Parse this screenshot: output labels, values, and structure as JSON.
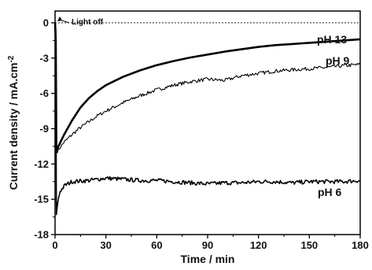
{
  "chart_data": {
    "type": "line",
    "title": "",
    "xlabel": "Time / min",
    "ylabel": "Current density / mA.cm",
    "ylabel_superscript": "-2",
    "xlim": [
      0,
      180
    ],
    "ylim": [
      -18,
      1
    ],
    "xticks": [
      0,
      30,
      60,
      90,
      120,
      150,
      180
    ],
    "yticks": [
      0,
      -3,
      -6,
      -9,
      -12,
      -15,
      -18
    ],
    "grid": false,
    "legend": "none",
    "baseline": {
      "y": 0,
      "style": "dashed"
    },
    "annotation": {
      "text": "Light off",
      "x": 0,
      "y": 0
    },
    "series": [
      {
        "name": "pH 13",
        "stroke": "#000000",
        "width": "thick",
        "points": [
          [
            0.4,
            -1.5
          ],
          [
            0.8,
            -10.9
          ],
          [
            2,
            -10.5
          ],
          [
            5,
            -9.6
          ],
          [
            10,
            -8.3
          ],
          [
            15,
            -7.2
          ],
          [
            20,
            -6.4
          ],
          [
            25,
            -5.8
          ],
          [
            30,
            -5.3
          ],
          [
            40,
            -4.6
          ],
          [
            50,
            -4.05
          ],
          [
            60,
            -3.6
          ],
          [
            70,
            -3.25
          ],
          [
            80,
            -2.95
          ],
          [
            90,
            -2.7
          ],
          [
            100,
            -2.45
          ],
          [
            110,
            -2.25
          ],
          [
            120,
            -2.05
          ],
          [
            130,
            -1.9
          ],
          [
            140,
            -1.8
          ],
          [
            150,
            -1.7
          ],
          [
            160,
            -1.6
          ],
          [
            170,
            -1.5
          ],
          [
            180,
            -1.4
          ]
        ]
      },
      {
        "name": "pH 9",
        "stroke": "#000000",
        "width": "thin",
        "noisy": true,
        "points": [
          [
            0.4,
            -1.0
          ],
          [
            0.8,
            -11.0
          ],
          [
            2,
            -10.8
          ],
          [
            5,
            -10.2
          ],
          [
            10,
            -9.5
          ],
          [
            15,
            -8.9
          ],
          [
            20,
            -8.4
          ],
          [
            25,
            -7.9
          ],
          [
            30,
            -7.5
          ],
          [
            40,
            -6.8
          ],
          [
            50,
            -6.2
          ],
          [
            60,
            -5.7
          ],
          [
            70,
            -5.3
          ],
          [
            80,
            -5.0
          ],
          [
            90,
            -4.8
          ],
          [
            100,
            -4.9
          ],
          [
            110,
            -4.5
          ],
          [
            120,
            -4.3
          ],
          [
            130,
            -4.1
          ],
          [
            140,
            -4.0
          ],
          [
            150,
            -3.9
          ],
          [
            160,
            -3.8
          ],
          [
            170,
            -3.65
          ],
          [
            180,
            -3.55
          ]
        ]
      },
      {
        "name": "pH 6",
        "stroke": "#000000",
        "width": "medium",
        "noisy": true,
        "points": [
          [
            0.4,
            -0.5
          ],
          [
            0.8,
            -16.3
          ],
          [
            1.5,
            -15.3
          ],
          [
            3,
            -14.3
          ],
          [
            6,
            -13.8
          ],
          [
            10,
            -13.5
          ],
          [
            20,
            -13.4
          ],
          [
            30,
            -13.2
          ],
          [
            40,
            -13.3
          ],
          [
            50,
            -13.4
          ],
          [
            60,
            -13.4
          ],
          [
            70,
            -13.5
          ],
          [
            80,
            -13.6
          ],
          [
            90,
            -13.7
          ],
          [
            100,
            -13.6
          ],
          [
            110,
            -13.6
          ],
          [
            120,
            -13.5
          ],
          [
            130,
            -13.5
          ],
          [
            140,
            -13.6
          ],
          [
            150,
            -13.5
          ],
          [
            160,
            -13.5
          ],
          [
            170,
            -13.5
          ],
          [
            180,
            -13.4
          ]
        ]
      }
    ]
  }
}
